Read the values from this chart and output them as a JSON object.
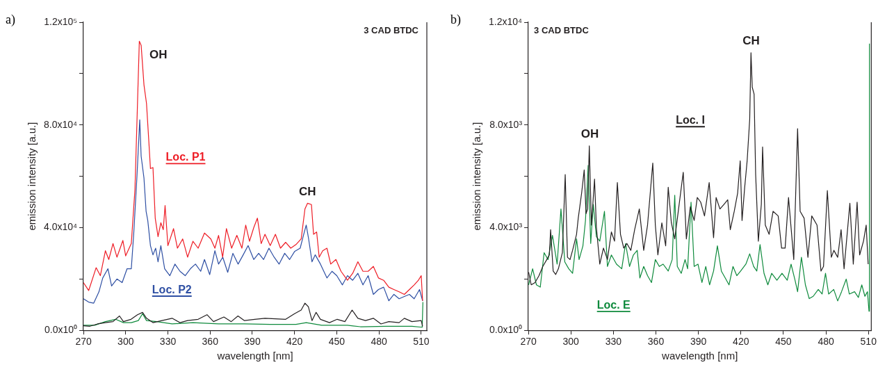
{
  "chart_data": [
    {
      "type": "line",
      "title": "a)",
      "xlabel": "wavelength [nm]",
      "ylabel": "emission intensity [a.u.]",
      "xlim": [
        270,
        514
      ],
      "xticks": [
        270,
        300,
        330,
        360,
        390,
        420,
        450,
        480,
        510
      ],
      "ylim": [
        0,
        120000
      ],
      "yticks": [
        {
          "value": 0,
          "label": "0.0x10⁰"
        },
        {
          "value": 20000,
          "label": null
        },
        {
          "value": 40000,
          "label": "4.0x10⁴"
        },
        {
          "value": 60000,
          "label": null
        },
        {
          "value": 80000,
          "label": "8.0x10⁴"
        },
        {
          "value": 100000,
          "label": null
        },
        {
          "value": 120000,
          "label": "1.2x10⁵"
        }
      ],
      "grid": false,
      "legend": false,
      "marker": "none",
      "line_style": "solid",
      "annotations": [
        "3 CAD BTDC",
        {
          "text": "OH",
          "x": 310,
          "y": 112600
        },
        {
          "text": "CH",
          "x": 429,
          "y": 49500
        }
      ],
      "series": [
        {
          "name": "Loc. P1",
          "color": "#ee1c25",
          "x": [
            270,
            273.7,
            279,
            282,
            285.6,
            288,
            291,
            293.8,
            298,
            300,
            304,
            306.6,
            308.4,
            309.7,
            311,
            313,
            314.8,
            316.3,
            317.6,
            319.4,
            321,
            323,
            325,
            326.7,
            328,
            330,
            334,
            336.8,
            340.5,
            344,
            347.8,
            351.5,
            356,
            360.5,
            363.4,
            366,
            368.9,
            371.6,
            375.3,
            379,
            382.6,
            385.3,
            388,
            391,
            393.6,
            396.3,
            399,
            402.7,
            406.4,
            410,
            413.7,
            417.3,
            421,
            424.7,
            427.4,
            429.2,
            432,
            433.5,
            435.7,
            437.5,
            440,
            443,
            445.7,
            449.4,
            453,
            457.6,
            461.3,
            465,
            468.6,
            472.3,
            476,
            479.6,
            483.3,
            487,
            490.6,
            494.3,
            498,
            501.6,
            505,
            508,
            510,
            511
          ],
          "values": [
            18600,
            15500,
            24400,
            21300,
            31000,
            27600,
            33800,
            28500,
            35000,
            29000,
            33800,
            55000,
            88400,
            112600,
            111000,
            95600,
            88400,
            75000,
            63000,
            63400,
            43700,
            36500,
            41900,
            39200,
            48600,
            33000,
            39600,
            32000,
            35600,
            28500,
            34700,
            32000,
            37900,
            35600,
            32000,
            37000,
            28500,
            39600,
            32000,
            37000,
            32000,
            41000,
            34700,
            40000,
            43700,
            33800,
            37400,
            33000,
            37400,
            32000,
            34300,
            32000,
            33400,
            35600,
            47300,
            49500,
            49000,
            37400,
            38300,
            28500,
            31000,
            32000,
            25800,
            27600,
            23000,
            19500,
            22200,
            26700,
            23000,
            23000,
            24900,
            20400,
            19500,
            16800,
            15900,
            15000,
            14000,
            15900,
            17700,
            19500,
            21300,
            11500
          ]
        },
        {
          "name": "Loc. P2",
          "color": "#2e4fa3",
          "x": [
            270,
            273.7,
            277.3,
            281,
            283.7,
            287.4,
            290,
            293.8,
            297.5,
            301,
            304,
            305.7,
            308,
            310,
            311,
            313,
            314.5,
            315.7,
            317.6,
            319.4,
            321.3,
            323,
            325,
            327.7,
            331.4,
            335,
            338.6,
            342.3,
            346,
            349.6,
            353.3,
            356,
            359.7,
            363.4,
            366,
            369,
            372.5,
            376.2,
            379.9,
            383.5,
            387,
            391,
            394.5,
            398,
            401.8,
            405.5,
            409,
            413,
            416.5,
            420,
            424,
            426.5,
            428.3,
            430,
            432.4,
            434.7,
            438.4,
            443,
            446.6,
            450,
            454,
            457.6,
            461.3,
            465,
            468.6,
            472.3,
            476,
            479.6,
            483.3,
            487,
            490.6,
            494.3,
            498,
            501.6,
            505,
            508.8,
            511
          ],
          "values": [
            12300,
            11000,
            10600,
            15000,
            20400,
            24000,
            17300,
            20000,
            18600,
            24000,
            24000,
            37400,
            59800,
            82000,
            67800,
            59300,
            46400,
            42800,
            33000,
            29400,
            32000,
            26700,
            33000,
            24000,
            21300,
            25800,
            23000,
            21300,
            24000,
            25800,
            23000,
            27600,
            21700,
            31000,
            25800,
            28500,
            22600,
            30000,
            25800,
            29400,
            33000,
            27600,
            30000,
            27600,
            32000,
            28500,
            25800,
            30000,
            27600,
            30700,
            32000,
            37400,
            41000,
            35600,
            26700,
            29400,
            25800,
            20400,
            23000,
            21300,
            17700,
            21300,
            19500,
            22200,
            17700,
            21300,
            14000,
            15900,
            16800,
            11500,
            14000,
            12300,
            13200,
            14000,
            12300,
            15900,
            11500
          ]
        },
        {
          "color": "#231f20",
          "x": [
            270,
            274.6,
            280,
            285.6,
            291,
            295.6,
            298.4,
            303.8,
            308.4,
            312,
            314.8,
            319.4,
            325.8,
            333,
            338.6,
            344,
            351.5,
            357.8,
            362.4,
            369.8,
            375,
            379.8,
            384.4,
            391.7,
            399,
            406.4,
            413.7,
            420,
            424.7,
            427.4,
            429.8,
            432.4,
            435.3,
            438.4,
            444.8,
            450.3,
            455.8,
            460.9,
            465,
            470.4,
            476,
            481.4,
            487,
            494.3,
            498,
            503.4,
            510,
            511
          ],
          "values": [
            1800,
            1600,
            2500,
            3000,
            3400,
            5600,
            3400,
            4300,
            6100,
            7000,
            4700,
            3000,
            3800,
            4700,
            3000,
            3800,
            4300,
            6100,
            3400,
            5200,
            3400,
            5600,
            3800,
            4300,
            4700,
            4500,
            4300,
            6500,
            7900,
            10600,
            9200,
            3800,
            7000,
            4300,
            3000,
            4300,
            3400,
            7900,
            4700,
            3800,
            4700,
            2500,
            3400,
            3000,
            4700,
            3400,
            3800,
            1600
          ]
        },
        {
          "color": "#0e8a3c",
          "x": [
            270,
            278,
            285.6,
            292.9,
            298.4,
            304,
            309,
            312,
            314.8,
            322,
            333,
            347.8,
            366,
            384.4,
            402.7,
            421,
            428.3,
            439.3,
            457.6,
            466.8,
            485,
            503.4,
            510.7,
            511.2
          ],
          "values": [
            2000,
            2000,
            3400,
            4300,
            3000,
            3000,
            3800,
            6500,
            3800,
            3400,
            2500,
            3000,
            2500,
            2500,
            2300,
            2300,
            3000,
            2000,
            2000,
            1400,
            1600,
            1600,
            1200,
            11000
          ]
        }
      ]
    },
    {
      "type": "line",
      "title": "b)",
      "xlabel": "wavelength [nm]",
      "ylabel": "emission intensity [a.u.]",
      "xlim": [
        270,
        512
      ],
      "xticks": [
        270,
        300,
        330,
        360,
        390,
        420,
        450,
        480,
        510
      ],
      "ylim": [
        0,
        12000
      ],
      "yticks": [
        {
          "value": 0,
          "label": "0.0x10⁰"
        },
        {
          "value": 2000,
          "label": null
        },
        {
          "value": 4000,
          "label": "4.0x10³"
        },
        {
          "value": 6000,
          "label": null
        },
        {
          "value": 8000,
          "label": "8.0x10³"
        },
        {
          "value": 10000,
          "label": null
        },
        {
          "value": 12000,
          "label": "1.2x10⁴"
        }
      ],
      "grid": false,
      "legend": false,
      "marker": "none",
      "line_style": "solid",
      "annotations": [
        "3 CAD BTDC",
        {
          "text": "OH",
          "x": 313,
          "y": 7187
        },
        {
          "text": "CH",
          "x": 427.1,
          "y": 10812
        }
      ],
      "series": [
        {
          "name": "Loc. I",
          "color": "#231f20",
          "x": [
            270.2,
            272,
            274.7,
            277.5,
            280.2,
            283,
            284.8,
            285.7,
            287.5,
            289.3,
            291.2,
            294,
            296,
            297.6,
            299.4,
            301.2,
            304,
            305.2,
            307.6,
            309.4,
            310.7,
            311.8,
            313,
            314.5,
            316.7,
            318,
            320.4,
            323,
            325.8,
            328.6,
            330.8,
            332.8,
            335,
            337.3,
            339.5,
            342.3,
            345,
            348.3,
            351.4,
            354.1,
            357.8,
            359.6,
            361.4,
            364.2,
            366.9,
            368.7,
            370.9,
            373.3,
            376,
            379.3,
            381.5,
            384.3,
            387,
            389.2,
            391.6,
            394.3,
            397.6,
            400.7,
            402.5,
            405.2,
            408,
            410.7,
            412.5,
            415.3,
            417.7,
            419.5,
            420.8,
            422.6,
            424.4,
            426.2,
            427.1,
            428,
            429.3,
            430.4,
            432.3,
            434.4,
            435.3,
            437.2,
            439.9,
            442.7,
            446.3,
            448.7,
            451.2,
            453.6,
            457.3,
            460,
            461.8,
            464.6,
            467.3,
            470,
            473.7,
            476.5,
            478.3,
            481,
            483.8,
            485.6,
            488.3,
            490.7,
            492.8,
            496.9,
            499.3,
            502,
            503.8,
            506.5,
            508.4,
            509.8
          ],
          "values": [
            2264,
            1772,
            1862,
            2130,
            2488,
            2757,
            2936,
            3920,
            2309,
            2175,
            2399,
            3025,
            6068,
            2846,
            2757,
            3115,
            3741,
            4368,
            5352,
            6247,
            4547,
            4726,
            7187,
            4099,
            5889,
            4010,
            2578,
            3204,
            2757,
            3831,
            3473,
            5755,
            3741,
            3204,
            3383,
            3115,
            3920,
            4726,
            3115,
            4099,
            6516,
            4099,
            2936,
            4189,
            3294,
            5576,
            4189,
            3562,
            4726,
            6158,
            3562,
            4815,
            4278,
            5173,
            4994,
            4457,
            5755,
            3607,
            5173,
            4726,
            4905,
            5084,
            3920,
            4636,
            5352,
            6605,
            4278,
            5531,
            6605,
            8216,
            10812,
            9469,
            9200,
            6068,
            3473,
            4905,
            7142,
            4099,
            3741,
            4636,
            4457,
            3204,
            3204,
            5173,
            2757,
            7858,
            4636,
            4368,
            2846,
            4457,
            4099,
            2309,
            2488,
            5442,
            2846,
            3115,
            2846,
            3920,
            2399,
            4949,
            2578,
            4994,
            2936,
            3473,
            4099,
            2578
          ]
        },
        {
          "name": "Loc. E",
          "color": "#0e8a3c",
          "x": [
            270.2,
            273,
            275.7,
            278.4,
            281.1,
            283.9,
            287,
            290.3,
            293,
            295.7,
            298.5,
            301.2,
            304,
            305.8,
            308.5,
            310.3,
            312.2,
            314,
            315.8,
            318,
            320.4,
            323.7,
            325.8,
            328.6,
            332.2,
            335.9,
            338.6,
            341.4,
            344.1,
            346.8,
            348.7,
            351.4,
            354.1,
            356.9,
            359.6,
            362.4,
            365.1,
            368.7,
            371.5,
            373.3,
            375.1,
            377.9,
            380.6,
            382.4,
            384.8,
            387,
            389.7,
            392.5,
            395.2,
            397.9,
            400.7,
            403.4,
            406.2,
            408.9,
            411.6,
            414.4,
            417.1,
            419.8,
            423.5,
            426.2,
            429,
            431.2,
            433.5,
            436.3,
            439,
            441.7,
            445.4,
            449,
            452.7,
            455.4,
            458.2,
            460,
            462.7,
            465.5,
            468.2,
            471,
            474.6,
            477.3,
            479.7,
            481.9,
            485.5,
            488.3,
            491,
            494.3,
            496.5,
            500.2,
            502.9,
            505.3,
            507.5,
            509.3,
            510.4,
            510.7
          ],
          "values": [
            1772,
            2399,
            1772,
            1683,
            3025,
            2757,
            3696,
            2578,
            4726,
            2667,
            2399,
            2220,
            3562,
            2757,
            3294,
            4278,
            6426,
            3383,
            4905,
            3652,
            3473,
            4636,
            2488,
            2936,
            2578,
            2399,
            3383,
            2488,
            2936,
            3115,
            2041,
            2488,
            2130,
            1862,
            2757,
            2488,
            2578,
            2309,
            2757,
            5263,
            2488,
            2220,
            2757,
            2399,
            4994,
            2488,
            2578,
            1862,
            2488,
            1772,
            2309,
            3294,
            2309,
            2041,
            1772,
            2488,
            2130,
            2309,
            2578,
            2981,
            2488,
            2309,
            3338,
            2220,
            1772,
            2220,
            1951,
            2220,
            1951,
            2578,
            1951,
            1504,
            2846,
            1772,
            1235,
            1325,
            1593,
            1414,
            2220,
            1414,
            1593,
            1146,
            1504,
            1996,
            1414,
            1504,
            1280,
            1772,
            1325,
            1504,
            743,
            11170
          ]
        }
      ]
    }
  ]
}
